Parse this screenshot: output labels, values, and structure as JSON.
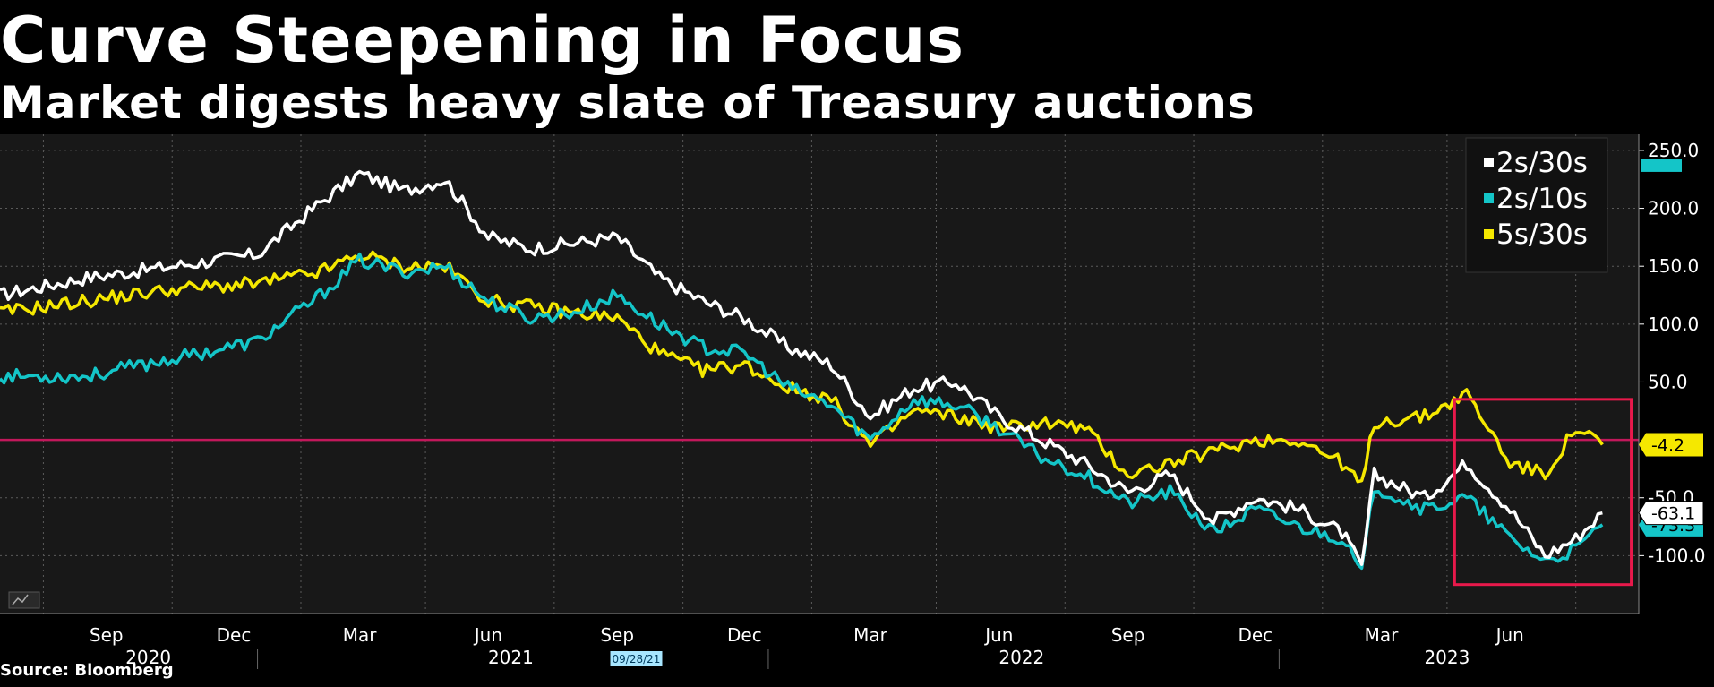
{
  "header": {
    "title": "Curve Steepening in Focus",
    "subtitle": "Market digests heavy slate of Treasury auctions"
  },
  "footer": {
    "source": "Source: Bloomberg"
  },
  "colors": {
    "background": "#000000",
    "plot_bg": "#181818",
    "grid": "#5a5a5a",
    "s2s30s": "#ffffff",
    "s2s10s": "#14c5c8",
    "s5s30s": "#f5e800",
    "zero_line": "#c2185b",
    "highlight_box": "#e8194b"
  },
  "chart_data": {
    "type": "line",
    "xlabel": "",
    "ylabel": "",
    "ylim": [
      -150,
      260
    ],
    "yticks": [
      250.0,
      200.0,
      150.0,
      100.0,
      50.0,
      -50.0,
      -100.0
    ],
    "ytick_labels": [
      "250.0",
      "200.0",
      "150.0",
      "100.0",
      "50.0",
      "-50.0",
      "-100.0"
    ],
    "x_month_ticks": [
      "Sep",
      "Dec",
      "Mar",
      "Jun",
      "Sep",
      "Dec",
      "Mar",
      "Jun",
      "Sep",
      "Dec",
      "Mar",
      "Jun"
    ],
    "x_year_labels": [
      "2020",
      "2021",
      "2022",
      "2023"
    ],
    "crosshair_date_label": "09/28/21",
    "reference_line": {
      "y": 0
    },
    "highlight": {
      "from": "2023-06-01",
      "to": "2023-08-31",
      "y_from": -125,
      "y_to": 35
    },
    "grid": true,
    "legend": {
      "position": "top-right",
      "entries": [
        "2s/30s",
        "2s/10s",
        "5s/30s"
      ]
    },
    "series": [
      {
        "name": "2s/30s",
        "last_value": -63.1,
        "last_label": "-63.1",
        "x": [
          "2020-07-01",
          "2020-09-01",
          "2020-11-01",
          "2021-01-01",
          "2021-02-15",
          "2021-03-15",
          "2021-04-15",
          "2021-05-15",
          "2021-06-15",
          "2021-07-15",
          "2021-08-15",
          "2021-09-15",
          "2021-10-15",
          "2021-11-15",
          "2021-12-15",
          "2022-01-15",
          "2022-02-15",
          "2022-03-15",
          "2022-04-15",
          "2022-05-15",
          "2022-06-15",
          "2022-07-15",
          "2022-08-15",
          "2022-09-15",
          "2022-10-15",
          "2022-11-15",
          "2022-12-15",
          "2023-01-15",
          "2023-02-15",
          "2023-03-01",
          "2023-03-10",
          "2023-04-15",
          "2023-05-15",
          "2023-06-15",
          "2023-07-10",
          "2023-08-01",
          "2023-08-20"
        ],
        "y": [
          125,
          140,
          150,
          160,
          205,
          230,
          215,
          225,
          175,
          165,
          170,
          175,
          140,
          120,
          105,
          80,
          65,
          20,
          45,
          50,
          20,
          0,
          -20,
          -45,
          -30,
          -70,
          -50,
          -60,
          -80,
          -110,
          -30,
          -50,
          -20,
          -60,
          -100,
          -85,
          -63.1
        ]
      },
      {
        "name": "2s/10s",
        "last_value": -73.3,
        "last_label": "-73.3",
        "x": [
          "2020-07-01",
          "2020-09-01",
          "2020-11-01",
          "2021-01-01",
          "2021-02-15",
          "2021-03-15",
          "2021-04-15",
          "2021-05-15",
          "2021-06-15",
          "2021-07-15",
          "2021-08-15",
          "2021-09-15",
          "2021-10-15",
          "2021-11-15",
          "2021-12-15",
          "2022-01-15",
          "2022-02-15",
          "2022-03-15",
          "2022-04-15",
          "2022-05-15",
          "2022-06-15",
          "2022-07-15",
          "2022-08-15",
          "2022-09-15",
          "2022-10-15",
          "2022-11-15",
          "2022-12-15",
          "2023-01-15",
          "2023-02-15",
          "2023-03-01",
          "2023-03-10",
          "2023-04-15",
          "2023-05-15",
          "2023-06-15",
          "2023-07-10",
          "2023-08-01",
          "2023-08-20"
        ],
        "y": [
          55,
          55,
          70,
          85,
          125,
          155,
          145,
          150,
          120,
          105,
          110,
          125,
          100,
          80,
          75,
          45,
          30,
          0,
          35,
          30,
          10,
          -15,
          -30,
          -55,
          -45,
          -80,
          -60,
          -75,
          -85,
          -115,
          -40,
          -60,
          -50,
          -85,
          -105,
          -95,
          -73.3
        ]
      },
      {
        "name": "5s/30s",
        "last_value": -4.2,
        "last_label": "-4.2",
        "x": [
          "2020-07-01",
          "2020-09-01",
          "2020-11-01",
          "2021-01-01",
          "2021-02-15",
          "2021-03-15",
          "2021-04-15",
          "2021-05-15",
          "2021-06-15",
          "2021-07-15",
          "2021-08-15",
          "2021-09-15",
          "2021-10-15",
          "2021-11-15",
          "2021-12-15",
          "2022-01-15",
          "2022-02-15",
          "2022-03-15",
          "2022-04-15",
          "2022-05-15",
          "2022-06-15",
          "2022-07-15",
          "2022-08-15",
          "2022-09-15",
          "2022-10-15",
          "2022-11-15",
          "2022-12-15",
          "2023-01-15",
          "2023-02-15",
          "2023-03-01",
          "2023-03-10",
          "2023-04-15",
          "2023-05-15",
          "2023-06-15",
          "2023-07-10",
          "2023-08-01",
          "2023-08-20"
        ],
        "y": [
          110,
          120,
          130,
          135,
          145,
          160,
          150,
          150,
          120,
          115,
          110,
          105,
          75,
          60,
          65,
          45,
          35,
          -5,
          25,
          20,
          10,
          15,
          10,
          -30,
          -20,
          -10,
          0,
          0,
          -20,
          -40,
          15,
          20,
          40,
          -20,
          -30,
          10,
          -4.2
        ]
      }
    ]
  }
}
